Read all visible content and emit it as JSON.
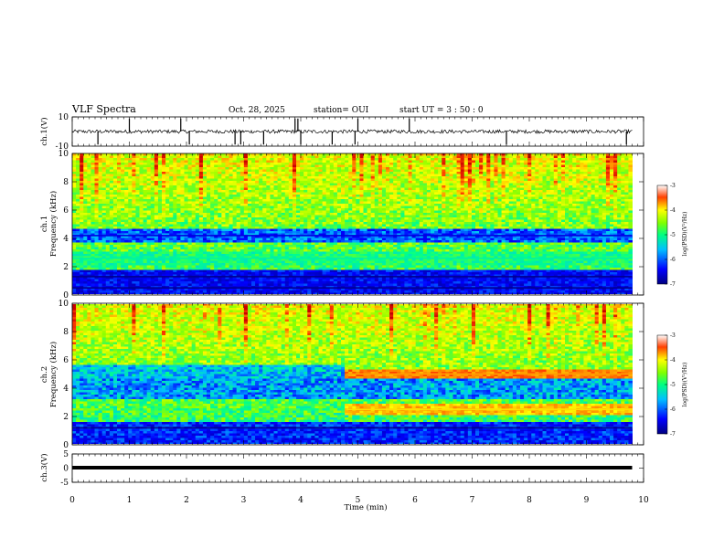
{
  "header": {
    "title": "VLF Spectra",
    "date": "Oct. 28, 2025",
    "station": "station= OUI",
    "start": "start  UT =  3 : 50 : 0"
  },
  "chart_data": [
    {
      "type": "line",
      "name": "ch1-waveform",
      "ylabel": "ch.1(V)",
      "ylim": [
        -10,
        10
      ],
      "y_ticks": [
        "10",
        "-10"
      ],
      "x_range_min": [
        0,
        9.8
      ],
      "baseline_v": 0,
      "spike_times_min": [
        0.45,
        1.0,
        1.9,
        2.05,
        2.85,
        2.95,
        3.35,
        3.9,
        3.95,
        4.0,
        4.55,
        4.95,
        5.0,
        5.9,
        7.6,
        9.7
      ]
    },
    {
      "type": "heatmap",
      "name": "ch1-spectrogram",
      "ylabel": "ch.1",
      "ylabel2": "Frequency (kHz)",
      "ylim": [
        0,
        10
      ],
      "y_ticks": [
        "0",
        "2",
        "4",
        "6",
        "8",
        "10"
      ],
      "x_range_min": [
        0,
        9.8
      ],
      "colorbar": {
        "label": "log(PSD)(V²/Hz)",
        "range": [
          -7,
          -3
        ],
        "ticks": [
          "-3",
          "-4",
          "-5",
          "-6",
          "-7"
        ]
      },
      "bands": [
        {
          "f_khz": 0.5,
          "level": -7
        },
        {
          "f_khz": 1.3,
          "level": -7
        },
        {
          "f_khz": 2.6,
          "level": -5.2
        },
        {
          "f_khz": 4.2,
          "level": -6.5
        }
      ],
      "background_level": [
        -5,
        -4.5
      ]
    },
    {
      "type": "heatmap",
      "name": "ch2-spectrogram",
      "ylabel": "ch.2",
      "ylabel2": "Frequency (kHz)",
      "ylim": [
        0,
        10
      ],
      "y_ticks": [
        "0",
        "2",
        "4",
        "6",
        "8",
        "10"
      ],
      "x_range_min": [
        0,
        9.8
      ],
      "colorbar": {
        "label": "log(PSD)(V²/Hz)",
        "range": [
          -7,
          -3
        ],
        "ticks": [
          "-3",
          "-4",
          "-5",
          "-6",
          "-7"
        ]
      },
      "bands": [
        {
          "f_khz": 5.0,
          "level": -3.8,
          "start_min": 4.8
        },
        {
          "f_khz": 2.5,
          "level": -4.0,
          "start_min": 4.8
        },
        {
          "f_khz": 1.2,
          "level": -7
        }
      ],
      "background_level": [
        -5,
        -4.5
      ]
    },
    {
      "type": "line",
      "name": "ch3-waveform",
      "ylabel": "ch.3(V)",
      "ylim": [
        -5,
        5
      ],
      "y_ticks": [
        "5",
        "0",
        "-5"
      ],
      "x_range_min": [
        0,
        9.8
      ],
      "constant_v": 0
    }
  ],
  "x_axis": {
    "label": "Time  (min)",
    "ticks": [
      "0",
      "1",
      "2",
      "3",
      "4",
      "5",
      "6",
      "7",
      "8",
      "9",
      "10"
    ],
    "range": [
      0,
      10
    ]
  }
}
